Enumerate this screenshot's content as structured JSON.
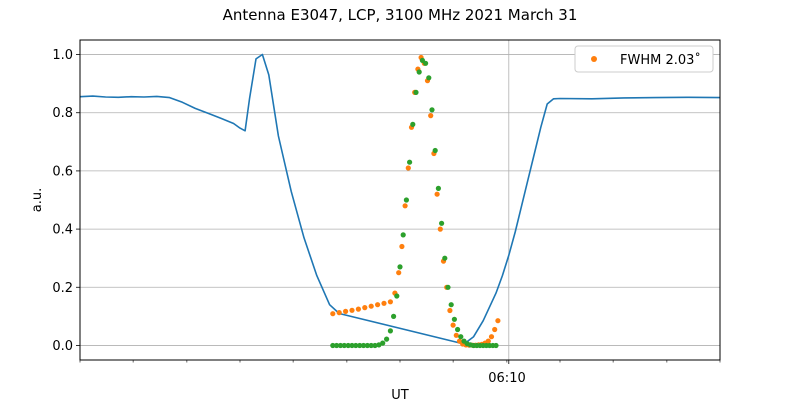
{
  "chart_data": {
    "type": "line",
    "title": "Antenna E3047, LCP, 3100 MHz 2021 March 31",
    "xlabel": "UT",
    "ylabel": "a.u.",
    "xlim": [
      0,
      100
    ],
    "ylim": [
      -0.05,
      1.05
    ],
    "x_tick_label": "06:10",
    "x_tick_label_pos": 67,
    "x_minor_ticks": [
      0,
      8.3,
      16.7,
      25,
      33.3,
      41.7,
      50,
      58.3,
      66.7,
      75,
      83.3,
      91.7,
      100
    ],
    "y_ticks": [
      0.0,
      0.2,
      0.4,
      0.6,
      0.8,
      1.0
    ],
    "y_tick_labels": [
      "0.0",
      "0.2",
      "0.4",
      "0.6",
      "0.8",
      "1.0"
    ],
    "grid": true,
    "legend": {
      "placement": "top-right",
      "entries": [
        "FWHM 2.03$^\\circ$"
      ],
      "label_text": "FWHM 2.03˚"
    },
    "colors": {
      "series_line": "#1f77b4",
      "series_orange": "#ff7f0e",
      "series_green": "#2ca02c",
      "grid": "#b0b0b0"
    },
    "series": [
      {
        "name": "",
        "kind": "line",
        "x": [
          0,
          2,
          4,
          6,
          8,
          10,
          12,
          14,
          16,
          18,
          20,
          22,
          24,
          25,
          25.8,
          26.5,
          27.5,
          28.5,
          29.5,
          31,
          33,
          35,
          37,
          39,
          40.5,
          60,
          61.5,
          63,
          65,
          66,
          67,
          68,
          69,
          70,
          71,
          72,
          73,
          74,
          75,
          80,
          85,
          90,
          95,
          100
        ],
        "y": [
          0.855,
          0.857,
          0.854,
          0.853,
          0.855,
          0.854,
          0.856,
          0.852,
          0.836,
          0.815,
          0.798,
          0.781,
          0.763,
          0.747,
          0.738,
          0.85,
          0.985,
          1.0,
          0.93,
          0.72,
          0.53,
          0.37,
          0.24,
          0.14,
          0.11,
          0.005,
          0.03,
          0.085,
          0.18,
          0.24,
          0.31,
          0.39,
          0.48,
          0.57,
          0.66,
          0.75,
          0.83,
          0.848,
          0.849,
          0.848,
          0.851,
          0.852,
          0.853,
          0.852
        ]
      },
      {
        "name": "FWHM 2.03˚",
        "kind": "points",
        "x": [
          39.5,
          40.5,
          41.5,
          42.5,
          43.5,
          44.5,
          45.5,
          46.5,
          47.5,
          48.5,
          49.2,
          49.8,
          50.3,
          50.8,
          51.3,
          51.8,
          52.3,
          52.8,
          53.3,
          53.8,
          54.3,
          54.8,
          55.3,
          55.8,
          56.3,
          56.8,
          57.3,
          57.8,
          58.3,
          58.8,
          59.3,
          59.8,
          60.3,
          60.8,
          61.3,
          61.8,
          62.3,
          62.8,
          63.3,
          63.8,
          64.3,
          64.8,
          65.3
        ],
        "y": [
          0.109,
          0.113,
          0.117,
          0.121,
          0.125,
          0.13,
          0.135,
          0.14,
          0.145,
          0.15,
          0.18,
          0.25,
          0.34,
          0.48,
          0.61,
          0.75,
          0.87,
          0.95,
          0.99,
          0.97,
          0.91,
          0.79,
          0.66,
          0.52,
          0.4,
          0.29,
          0.2,
          0.12,
          0.07,
          0.035,
          0.015,
          0.005,
          0.002,
          0.001,
          0.001,
          0.001,
          0.002,
          0.004,
          0.008,
          0.015,
          0.03,
          0.055,
          0.085
        ]
      },
      {
        "name": "",
        "kind": "points",
        "x": [
          39.5,
          40.1,
          40.7,
          41.3,
          41.9,
          42.5,
          43.1,
          43.7,
          44.3,
          44.9,
          45.5,
          46.1,
          46.7,
          47.3,
          47.9,
          48.5,
          49.0,
          49.5,
          50.0,
          50.5,
          51.0,
          51.5,
          52.0,
          52.5,
          53.0,
          53.5,
          54.0,
          54.5,
          55.0,
          55.5,
          56.0,
          56.5,
          57.0,
          57.5,
          58.0,
          58.5,
          59.0,
          59.5,
          60.0,
          60.5,
          61.0,
          61.5,
          62.0,
          62.5,
          63.0,
          63.5,
          64.0,
          64.5,
          65.0
        ],
        "y": [
          0,
          0,
          0,
          0,
          0,
          0,
          0,
          0,
          0,
          0,
          0,
          0,
          0.002,
          0.008,
          0.022,
          0.05,
          0.1,
          0.17,
          0.27,
          0.38,
          0.5,
          0.63,
          0.76,
          0.87,
          0.94,
          0.98,
          0.97,
          0.92,
          0.81,
          0.67,
          0.54,
          0.42,
          0.3,
          0.2,
          0.14,
          0.09,
          0.055,
          0.03,
          0.015,
          0.006,
          0.002,
          0,
          0,
          0,
          0,
          0,
          0,
          0,
          0
        ]
      }
    ]
  }
}
